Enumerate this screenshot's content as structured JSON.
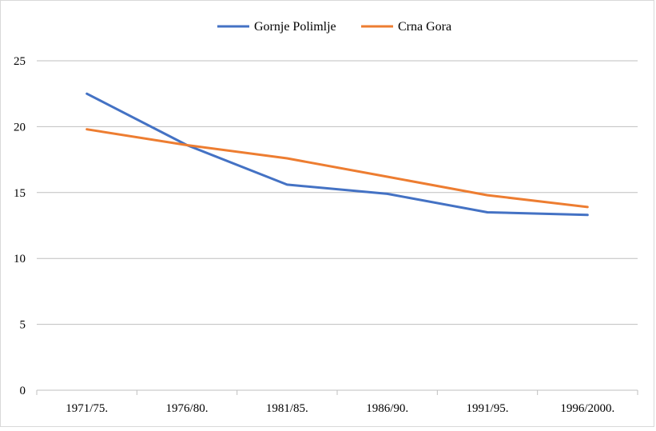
{
  "chart_data": {
    "type": "line",
    "title": "",
    "xlabel": "",
    "ylabel": "",
    "categories": [
      "1971/75.",
      "1976/80.",
      "1981/85.",
      "1986/90.",
      "1991/95.",
      "1996/2000."
    ],
    "series": [
      {
        "name": "Gornje Polimlje",
        "color": "#4472c4",
        "values": [
          22.5,
          18.6,
          15.6,
          14.9,
          13.5,
          13.3
        ]
      },
      {
        "name": "Crna Gora",
        "color": "#ed7d31",
        "values": [
          19.8,
          18.6,
          17.6,
          16.2,
          14.8,
          13.9
        ]
      }
    ],
    "ylim": [
      0,
      25
    ],
    "yticks": [
      0,
      5,
      10,
      15,
      20,
      25
    ],
    "grid": true,
    "legend": "top-center"
  }
}
